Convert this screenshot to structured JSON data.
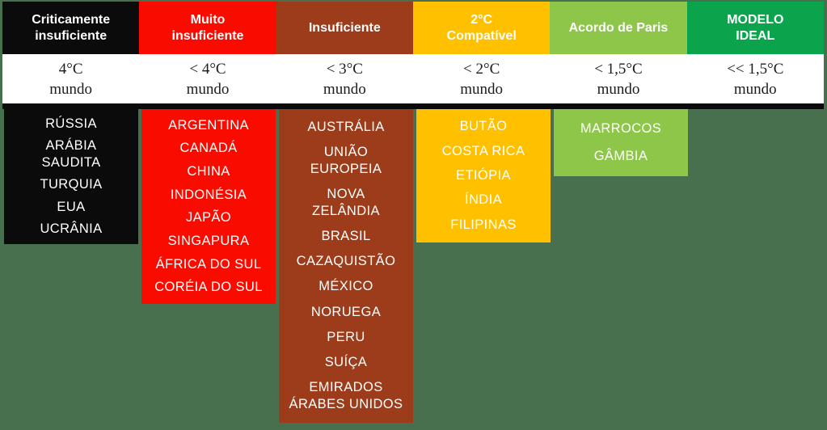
{
  "background_color": "#48704f",
  "band_color": "#ffffff",
  "divider_color": "#0a0a0a",
  "text_color": "#ffffff",
  "chart_data": {
    "type": "table",
    "title": "",
    "categories": [
      {
        "label": "Criticamente insuficiente",
        "label_display": "Criticamente\ninsuficiente",
        "temperature": "4°C",
        "scope": "mundo",
        "color": "#0b0b0b",
        "countries": [
          {
            "name": "RÚSSIA",
            "display": "RÚSSIA"
          },
          {
            "name": "ARÁBIA SAUDITA",
            "display": "ARÁBIA\nSAUDITA"
          },
          {
            "name": "TURQUIA",
            "display": "TURQUIA"
          },
          {
            "name": "EUA",
            "display": "EUA"
          },
          {
            "name": "UCRÂNIA",
            "display": "UCRÂNIA"
          }
        ]
      },
      {
        "label": "Muito insuficiente",
        "label_display": "Muito\ninsuficiente",
        "temperature": "< 4°C",
        "scope": "mundo",
        "color": "#f90b00",
        "countries": [
          {
            "name": "ARGENTINA",
            "display": "ARGENTINA"
          },
          {
            "name": "CANADÁ",
            "display": "CANADÁ"
          },
          {
            "name": "CHINA",
            "display": "CHINA"
          },
          {
            "name": "INDONÉSIA",
            "display": "INDONÉSIA"
          },
          {
            "name": "JAPÃO",
            "display": "JAPÃO"
          },
          {
            "name": "SINGAPURA",
            "display": "SINGAPURA"
          },
          {
            "name": "ÁFRICA DO SUL",
            "display": "ÁFRICA DO SUL"
          },
          {
            "name": "CORÉIA DO SUL",
            "display": "CORÉIA DO SUL"
          }
        ]
      },
      {
        "label": "Insuficiente",
        "label_display": "Insuficiente",
        "temperature": "< 3°C",
        "scope": "mundo",
        "color": "#9c3c1a",
        "countries": [
          {
            "name": "AUSTRÁLIA",
            "display": "AUSTRÁLIA"
          },
          {
            "name": "UNIÃO EUROPEIA",
            "display": "UNIÃO\nEUROPEIA"
          },
          {
            "name": "NOVA ZELÂNDIA",
            "display": "NOVA\nZELÂNDIA"
          },
          {
            "name": "BRASIL",
            "display": "BRASIL"
          },
          {
            "name": "CAZAQUISTÃO",
            "display": "CAZAQUISTÃO"
          },
          {
            "name": "MÉXICO",
            "display": "MÉXICO"
          },
          {
            "name": "NORUEGA",
            "display": "NORUEGA"
          },
          {
            "name": "PERU",
            "display": "PERU"
          },
          {
            "name": "SUÍÇA",
            "display": "SUÍÇA"
          },
          {
            "name": "EMIRADOS ÁRABES UNIDOS",
            "display": "EMIRADOS\nÁRABES UNIDOS"
          }
        ]
      },
      {
        "label": "2°C Compatível",
        "label_display": "2°C\nCompatível",
        "temperature": "< 2°C",
        "scope": "mundo",
        "color": "#ffc000",
        "countries": [
          {
            "name": "BUTÃO",
            "display": "BUTÃO"
          },
          {
            "name": "COSTA RICA",
            "display": "COSTA RICA"
          },
          {
            "name": "ETIÓPIA",
            "display": "ETIÓPIA"
          },
          {
            "name": "ÍNDIA",
            "display": "ÍNDIA"
          },
          {
            "name": "FILIPINAS",
            "display": "FILIPINAS"
          }
        ]
      },
      {
        "label": "Acordo de Paris",
        "label_display": "Acordo de Paris",
        "temperature": "< 1,5°C",
        "scope": "mundo",
        "color": "#8ec64a",
        "countries": [
          {
            "name": "MARROCOS",
            "display": "MARROCOS"
          },
          {
            "name": "GÂMBIA",
            "display": "GÂMBIA"
          }
        ]
      },
      {
        "label": "MODELO IDEAL",
        "label_display": "MODELO\nIDEAL",
        "temperature": "<< 1,5°C",
        "scope": "mundo",
        "color": "#0ba44c",
        "countries": []
      }
    ]
  }
}
